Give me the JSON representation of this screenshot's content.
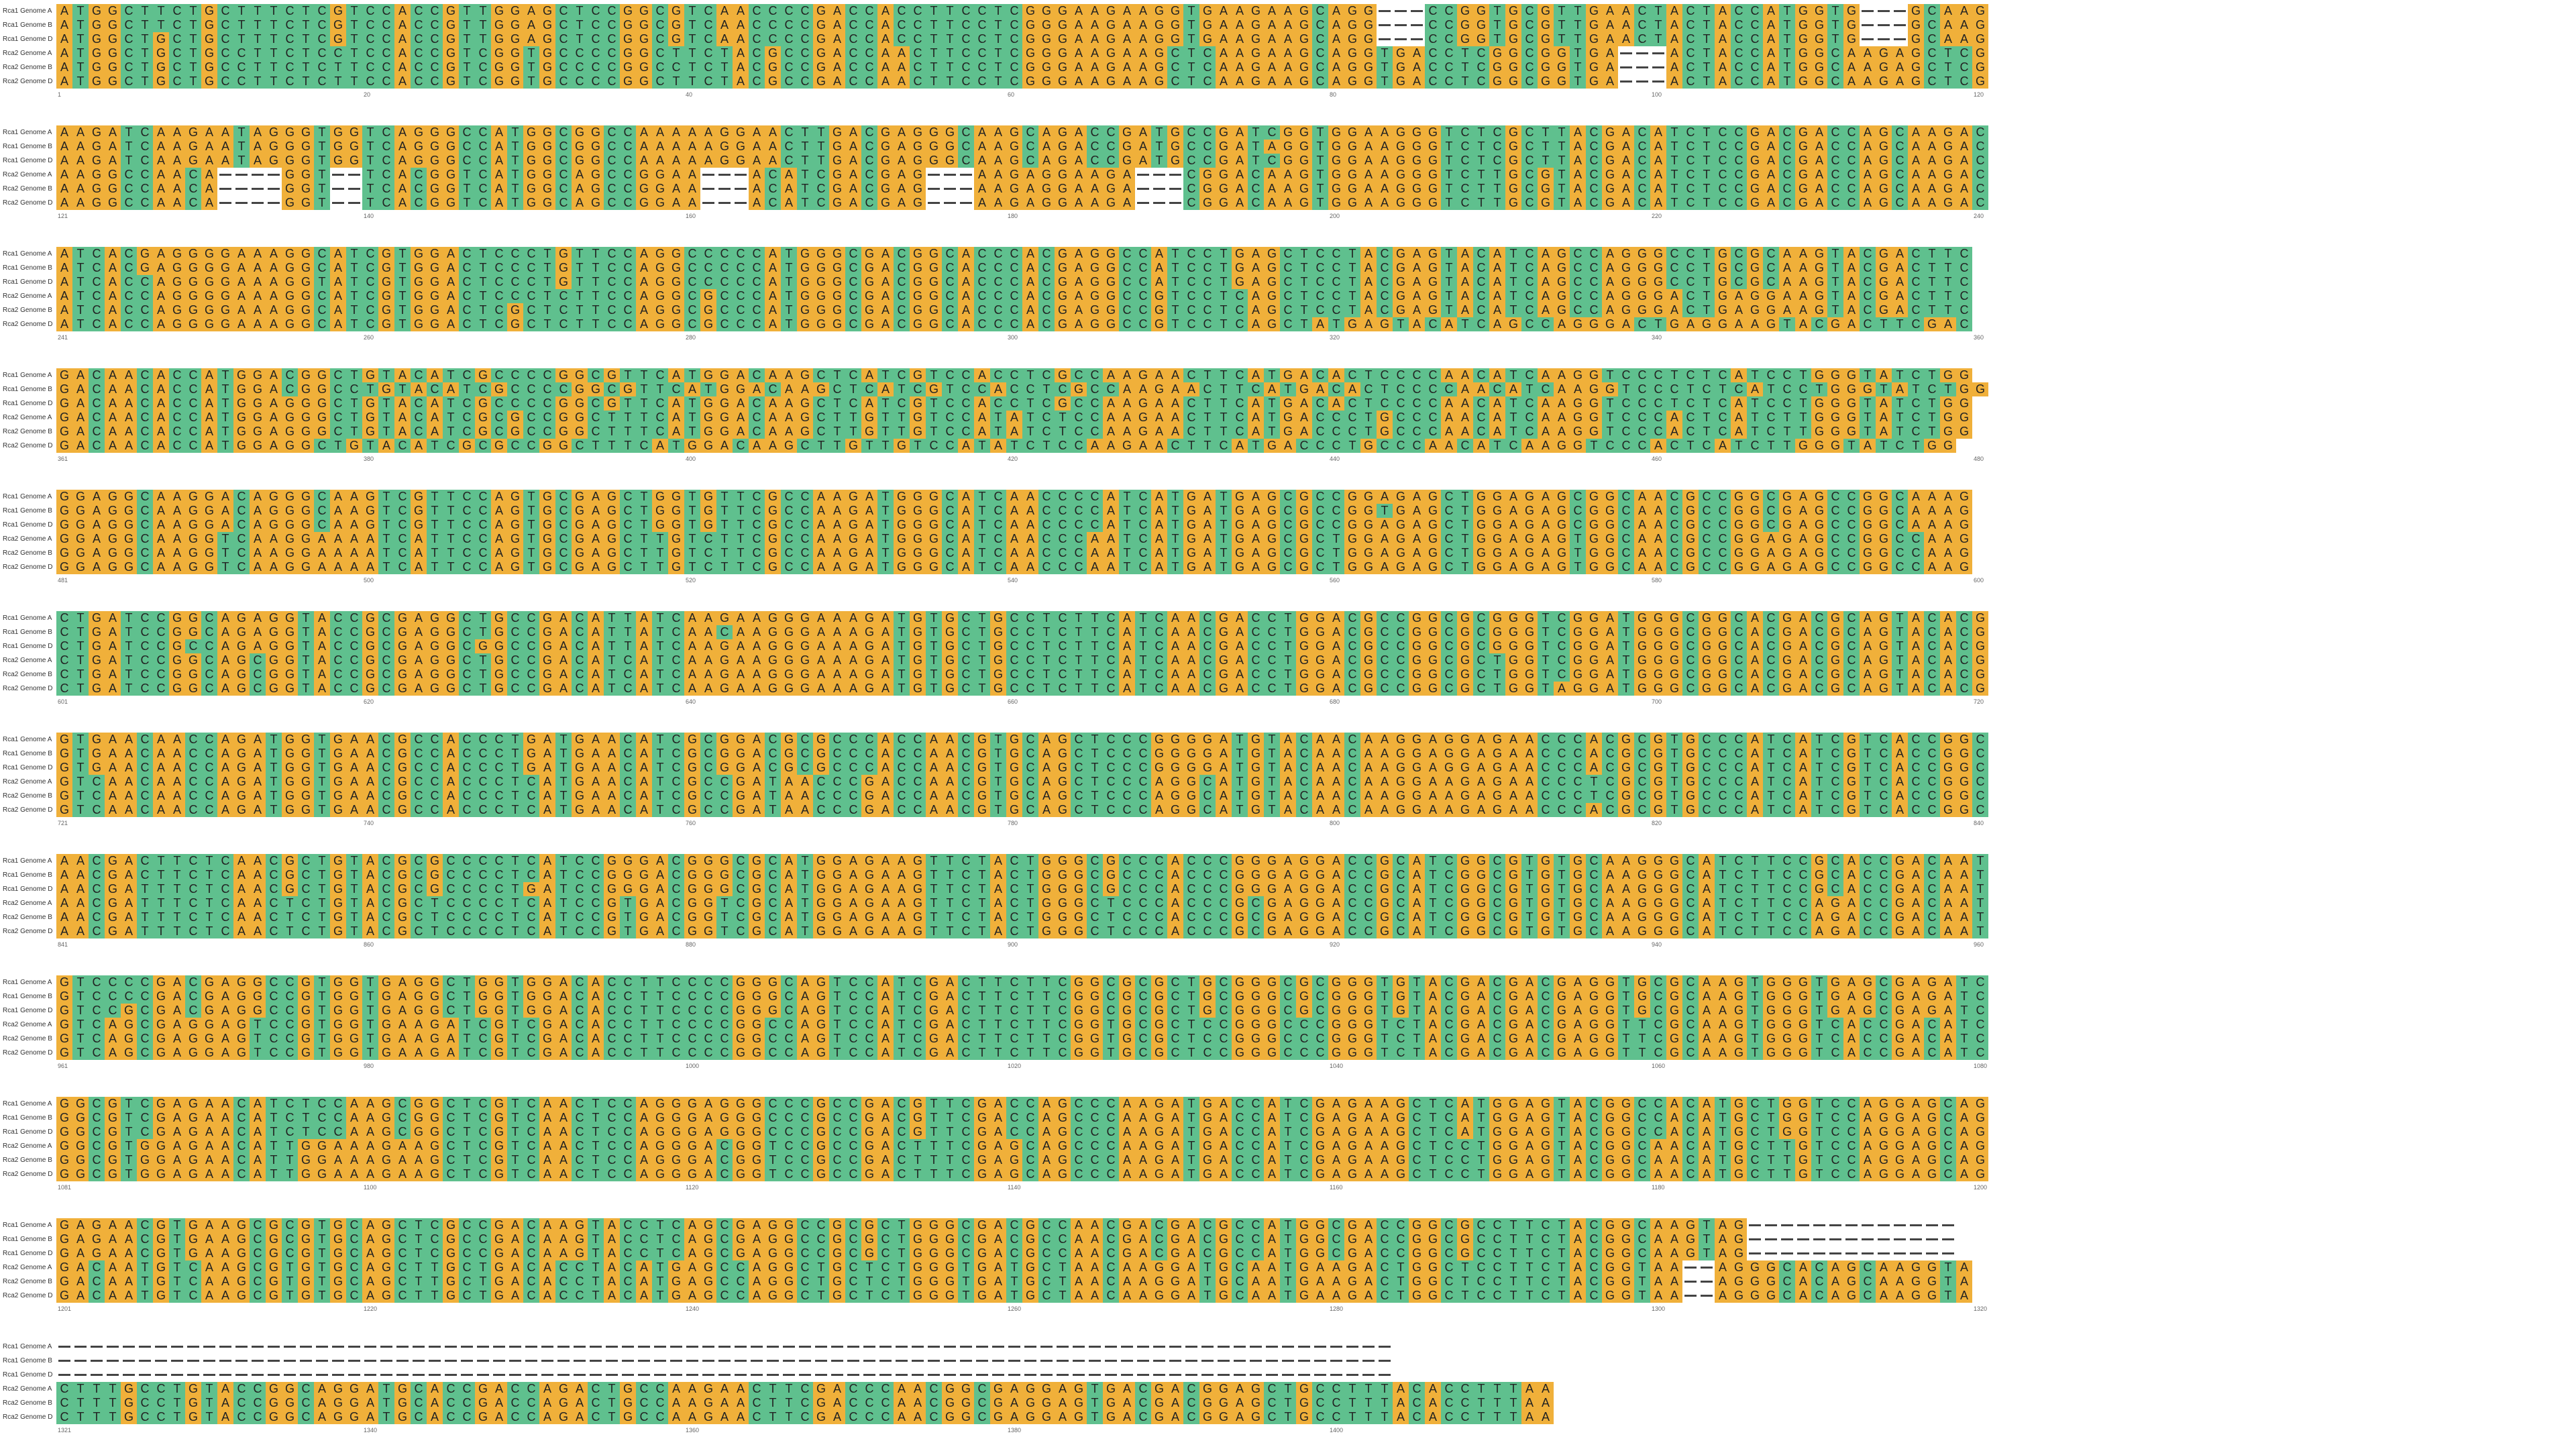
{
  "viewer": {
    "sequences": [
      "Rca1 Genome A",
      "Rca1 Genome B",
      "Rca1 Genome D",
      "Rca2 Genome A",
      "Rca2 Genome B",
      "Rca2 Genome D"
    ],
    "colors": {
      "A": "#f0b03a",
      "C": "#5fc08e",
      "G": "#f0b03a",
      "T": "#5fc08e",
      "-": "#ffffff",
      "text": "#222222",
      "gap_line": "#444444"
    },
    "blocks": [
      {
        "start": 1,
        "ticks": [
          "1",
          "20",
          "40",
          "60",
          "80",
          "100",
          "120"
        ],
        "rows": [
          "ATGGCTTCTGCTTTCTCGTCCACCGTTGGAGCTCCGGCGTCAACCCCGACCACCTTCCTCGGGAAGAAGGTGAAGAAGCAGG---CCGGTGCGTTGAACTACTACCATGGTG---GCAAG",
          "ATGGCTTCTGCTTTCTCGTCCACCGTTGGAGCTCCGGCGTCAACCCCGACCACCTTCCTCGGGAAGAAGGTGAAGAAGCAGG---CCGGTGCGTTGAACTACTACCATGGTG---GCAAG",
          "ATGGCTGCTGCTTTCTCGTCCACCGTTGGAGCTCCGGCGTCAACCCCGACCACCTTCCTCGGGAAGAAGGTGAAGAAGCAGG---CCGGTGCGTTGAACTACTACCATGGTG---GCAAG",
          "ATGGCTGCTGCCTTCTCCTCCACCGTCGGTGCCCCGGCTTCTACGCCGACCAACTTCCTCGGGAAGAAGCTCAAGAAGCAGGTGACCTCGGCGGTGA---ACTACCATGGCAAGAGCTCG",
          "ATGGCTGCTGCCTTCTCTTCCACCGTCGGTGCCCCGGCCTCTACGCCGACCAACTTCCTCGGGAAGAAGCTCAAGAAGCAGGTGACCTCGGCGGTGA---ACTACCATGGCAAGAGCTCG",
          "ATGGCTGCTGCCTTCTCTTCCACCGTCGGTGCCCCGGCTTCTACGCCGACCAACTTCCTCGGGAAGAAGCTCAAGAAGCAGGTGACCTCGGCGGTGA---ACTACCATGGCAAGAGCTCG"
        ]
      },
      {
        "start": 121,
        "ticks": [
          "121",
          "140",
          "160",
          "180",
          "200",
          "220",
          "240"
        ],
        "rows": [
          "AAGATCAAGAATAGGGTGGTCAGGGCCATGGCGGCCAAAAAGGAACTTGACGAGGGCAAGCAGACCGATGCCGATCGGTGGAAGGGTCTCGCTTACGACATCTCCGACGACCAGCAAGAC",
          "AAGATCAAGAATAGGGTGGTCAGGGCCATGGCGGCCAAAAAGGAACTTGACGAGGGCAAGCAGACCGATGCCGATAGGTGGAAGGGTCTCGCTTACGACATCTCCGACGACCAGCAAGAC",
          "AAGATCAAGAATAGGGTGGTCAGGGCCATGGCGGCCAAAAAGGAACTTGACGAGGGCAAGCAGACCGATGCCGATCGGTGGAAGGGTCTCGCTTACGACATCTCCGACGACCAGCAAGAC",
          "AAGGCCAACA----GGT--TCACGGTCATGGCAGCCGGAA---ACATCGACGAG---AAGAGGAAGA---CGGACAAGTGGAAGGGTCTTGCGTACGACATCTCCGACGACCAGCAAGAC",
          "AAGGCCAACA----GGT--TCACGGTCATGGCAGCCGGAA---ACATCGACGAG---AAGAGGAAGA---CGGACAAGTGGAAGGGTCTTGCGTACGACATCTCCGACGACCAGCAAGAC",
          "AAGGCCAACA----GGT--TCACGGTCATGGCAGCCGGAA---ACATCGACGAG---AAGAGGAAGA---CGGACAAGTGGAAGGGTCTTGCGTACGACATCTCCGACGACCAGCAAGAC"
        ]
      },
      {
        "start": 241,
        "ticks": [
          "241",
          "260",
          "280",
          "300",
          "320",
          "340",
          "360"
        ],
        "rows": [
          "ATCACGAGGGGAAAGGCATCGTGGACTCCCTGTTCCAGGCCCCCATGGGCGACGGCACCCACGAGGCCATCCTGAGCTCCTACGAGTACATCAGCCAGGGCCTGCGCAAGTACGACTTC",
          "ATCACGAGGGGAAAGGCATCGTGGACTCCCTGTTCCAGGCCCCCATGGGCGACGGCACCCACGAGGCCATCCTGAGCTCCTACGAGTACATCAGCCAGGGCCTGCGCAAGTACGACTTC",
          "ATCACCAGGGGAAAGGTATCGTGGACTCCCTGTTCCAGGCCCCCATGGGCGACGGCACCCACGAGGCCATCCTGAGCTCCTACGAGTACATCAGCCAGGGCCTGCGCAAGTACGACTTC",
          "ATCACCAGGGGAAAGGCATCGTGGACTCCCTCTTCCAGGCGCCCATGGGCGACGGCACCCACGAGGCCGTCCTCAGCTCCTACGAGTACATCAGCCAGGGACTGAGGAAGTACGACTTC",
          "ATCACCAGGGGAAAGGCATCGTGGACTCGCTCTTCCAGGCGCCCATGGGCGACGGCACCCACGAGGCCGTCCTCAGCTCCTACGAGTACATCAGCCAGGGACTGAGGAAGTACGACTTC",
          "ATCACCAGGGGAAAGGCATCGTGGACTCGCTCTTCCAGGCGCCCATGGGCGACGGCACCCACGAGGCCGTCCTCAGCTATGAGTACATCAGCCAGGGACTGAGGAAGTACGACTTCGAC"
        ]
      },
      {
        "start": 361,
        "ticks": [
          "361",
          "380",
          "400",
          "420",
          "440",
          "460",
          "480"
        ],
        "rows": [
          "GACAACACCATGGACGGCTGTACATCGCCCCGGCGTTCATGGACAAGCTCATCGTCCACCTCGCCAAGAACTTCATGACACTCCCCAACATCAAGGTCCCTCTCATCCTGGGTATCTGG",
          "GACAACACCATGGACGGCCTGTACATCGCCCCGGCGTTCATGGACAAGCTCATCGTCCACCTCGCCAAGAACTTCATGACACTCCCCAACATCAAGGTCCCTCTCATCCTGGGTATCTGG",
          "GACAACACCATGGAGGGCTGTACATCGCCCCGGCGTTCATGGACAAGCTCATCGTCCACCTCGCCAAGAACTTCATGACACTCCCCAACATCAAGGTCCCTCTCATCCTGGGTATCTGG",
          "GACAACACCATGGAGGGCTGTACATCGCGCCGGCTTTCATGGACAAGCTTGTTGTCCATATCTCCAAGAACTTCATGACCCTGCCCAACATCAAGGTCCCACTCATCTTGGGTATCTGG",
          "GACAACACCATGGAGGGCTGTACATCGCGCCGGCTTTCATGGACAAGCTTGTTGTCCATATCTCCAAGAACTTCATGACCCTGCCCAACATCAAGGTCCCACTCATCTTGGGTATCTGG",
          "GACAACACCATGGAGGCTGTACATCGCGCCGGCTTTCATGGACAAGCTTGTTGTCCATATCTCCAAGAACTTCATGACCCTGCCCAACATCAAGGTCCCACTCATCTTGGGTATCTGG"
        ]
      },
      {
        "start": 481,
        "ticks": [
          "481",
          "500",
          "520",
          "540",
          "560",
          "580",
          "600"
        ],
        "rows": [
          "GGAGGCAAGGACAGGGCAAGTCGTTCCAGTGCGAGCTGGTGTTCGCCAAGATGGGCATCAACCCCATCATGATGAGCGCCGGAGAGCTGGAGAGCGGCAACGCCGGCGAGCCGGCAAAG",
          "GGAGGCAAGGACAGGGCAAGTCGTTCCAGTGCGAGCTGGTGTTCGCCAAGATGGGCATCAACCCCATCATGATGAGCGCCGGTGAGCTGGAGAGCGGCAACGCCGGCGAGCCGGCAAAG",
          "GGAGGCAAGGACAGGGCAAGTCGTTCCAGTGCGAGCTGGTGTTCGCCAAGATGGGCATCAACCCCATCATGATGAGCGCCGGAGAGCTGGAGAGCGGCAACGCCGGCGAGCCGGCAAAG",
          "GGAGGCAAGGTCAAGGAAAATCATTCCAGTGCGAGCTTGTCTTCGCCAAGATGGGCATCAACCCAATCATGATGAGCGCTGGAGAGCTGGAGAGTGGCAACGCCGGAGAGCCGGCCAAG",
          "GGAGGCAAGGTCAAGGAAAATCATTCCAGTGCGAGCTTGTCTTCGCCAAGATGGGCATCAACCCAATCATGATGAGCGCTGGAGAGCTGGAGAGTGGCAACGCCGGAGAGCCGGCCAAG",
          "GGAGGCAAGGTCAAGGAAAATCATTCCAGTGCGAGCTTGTCTTCGCCAAGATGGGCATCAACCCAATCATGATGAGCGCTGGAGAGCTGGAGAGTGGCAACGCCGGAGAGCCGGCCAAG"
        ]
      },
      {
        "start": 601,
        "ticks": [
          "601",
          "620",
          "640",
          "660",
          "680",
          "700",
          "720"
        ],
        "rows": [
          "CTGATCCGGCAGAGGTACCGCGAGGCTGCCGACATTATCAAGAAGGGAAAGATGTGCTGCCTCTTCATCAACGACCTGGACGCCGGCGCGGGTCGGATGGGCGGCACGACGCAGTACACG",
          "CTGATCCGGCAGAGGTACCGCGAGGCTGCCGACATTATCAACAAGGGAAAGATGTGCTGCCTCTTCATCAACGACCTGGACGCCGGCGCGGGTCGGATGGGCGGCACGACGCAGTACACG",
          "CTGATCCGCCAGAGGTACCGCGAGGCGGCCGACATTATCAAGAAGGGAAAGATGTGCTGCCTCTTCATCAACGACCTGGACGCCGGCGCGGGTCGGATGGGCGGCACGACGCAGTACACG",
          "CTGATCCGGCAGCGGTACCGCGAGGCTGCCGACATCATCAAGAAGGGAAAGATGTGCTGCCTCTTCATCAACGACCTGGACGCCGGCGCTGGTCGGATGGGCGGCACGACGCAGTACACG",
          "CTGATCCGGCAGCGGTACCGCGAGGCTGCCGACATCATCAAGAAGGGAAAGATGTGCTGCCTCTTCATCAACGACCTGGACGCCGGCGCTGGTCGGATGGGCGGCACGACGCAGTACACG",
          "CTGATCCGGCAGCGGTACCGCGAGGCTGCCGACATCATCAAGAAGGGAAAGATGTGCTGCCTCTTCATCAACGACCTGGACGCCGGCGCTGGTAGGATGGGCGGCACGACGCAGTACACG"
        ]
      },
      {
        "start": 721,
        "ticks": [
          "721",
          "740",
          "760",
          "780",
          "800",
          "820",
          "840"
        ],
        "rows": [
          "GTGAACAACCAGATGGTGAACGCCACCCTGATGAACATCGCGGACGCGCCCACCAACGTGCAGCTCCCGGGGATGTACAACAAGGAGGAGAACCCACGCGTGCCCATCATCGTCACCGGC",
          "GTGAACAACCAGATGGTGAACGCCACCCTGATGAACATCGCGGACGCGCCCACCAACGTGCAGCTCCCGGGGATGTACAACAAGGAGGAGAACCCACGCGTGCCCATCATCGTCACCGGC",
          "GTGAACAACCAGATGGTGAACGCCACCCTGATGAACATCGCGGACGCGCCCACCAACGTGCAGCTCCCGGGGATGTACAACAAGGAGGAGAACCCACGCGTGCCCATCATCGTCACCGGC",
          "GTCAACAACCAGATGGTGAACGCCACCCTCATGAACATCGCCGATAACCCGACCAACGTGCAGCTCCCAGGCATGTACAACAAGGAAGAGAACCCTCGCGTGCCCATCATCGTCACCGGC",
          "GTCAACAACCAGATGGTGAACGCCACCCTCATGAACATCGCCGATAACCCGACCAACGTGCAGCTCCCAGGCATGTACAACAAGGAAGAGAACCCTCGCGTGCCCATCATCGTCACCGGC",
          "GTCAACAACCAGATGGTGAACGCCACCCTCATGAACATCGCCGATAACCCGACCAACGTGCAGCTCCCAGGCATGTACAACAAGGAAGAGAACCCACGCGTGCCCATCATCGTCACCGGC"
        ]
      },
      {
        "start": 841,
        "ticks": [
          "841",
          "860",
          "880",
          "900",
          "920",
          "940",
          "960"
        ],
        "rows": [
          "AACGACTTCTCAACGCTGTACGCGCCCCTCATCCGGGACGGGCGCATGGAGAAGTTCTACTGGGCGCCCACCCGGGAGGACCGCATCGGCGTGTGCAAGGGCATCTTCCGCACCGACAAT",
          "AACGACTTCTCAACGCTGTACGCGCCCCTCATCCGGGACGGGCGCATGGAGAAGTTCTACTGGGCGCCCACCCGGGAGGACCGCATCGGCGTGTGCAAGGGCATCTTCCGCACCGACAAT",
          "AACGATTTCTCAACGCTGTACGCGCCCCTGATCCGGGACGGGCGCATGGAGAAGTTCTACTGGGCGCCCACCCGGGAGGACCGCATCGGCGTGTGCAAGGGCATCTTCCGCACCGACAAT",
          "AACGATTTCTCAACTCTGTACGCTCCCCTCATCCGTGACGGTCGCATGGAGAAGTTCTACTGGGCTCCCACCCGCGAGGACCGCATCGGCGTGTGCAAGGGCATCTTCCAGACCGACAAT",
          "AACGATTTCTCAACTCTGTACGCTCCCCTCATCCGTGACGGTCGCATGGAGAAGTTCTACTGGGCTCCCACCCGCGAGGACCGCATCGGCGTGTGCAAGGGCATCTTCCAGACCGACAAT",
          "AACGATTTCTCAACTCTGTACGCTCCCCTCATCCGTGACGGTCGCATGGAGAAGTTCTACTGGGCTCCCACCCGCGAGGACCGCATCGGCGTGTGCAAGGGCATCTTCCAGACCGACAAT"
        ]
      },
      {
        "start": 961,
        "ticks": [
          "961",
          "980",
          "1000",
          "1020",
          "1040",
          "1060",
          "1080"
        ],
        "rows": [
          "GTCCCCGACGAGGCCGTGGTGAGGCTGGTGGACACCTTCCCCGGGCAGTCCATCGACTTCTTCGGCGCGCTGCGGGCGCGGGTGTACGACGACGAGGTGCGCAAGTGGGTGAGCGAGATC",
          "GTCCCCGACGAGGCCGTGGTGAGGCTGGTGGACACCTTCCCCGGGCAGTCCATCGACTTCTTCGGCGCGCTGCGGGCGCGGGTGTACGACGACGAGGTGCGCAAGTGGGTGAGCGAGATC",
          "GTCCGCGACGAGGCCGTGGTGAGGCTGGTGGACACCTTCCCCGGGCAGTCCATCGACTTCTTCGGCGCGCTGCGGGCGCGGGTGTACGACGACGAGGTGCGCAAGTGGGTGAGCGAGATC",
          "GTCAGCGAGGAGTCCGTGGTGAAGATCGTCGACACCTTCCCCGGCCAGTCCATCGACTTCTTCGGTGCGCTCCGGGCCCGGGTCTACGACGACGAGGTTCGCAAGTGGGTCACCGACATC",
          "GTCAGCGAGGAGTCCGTGGTGAAGATCGTCGACACCTTCCCCGGCCAGTCCATCGACTTCTTCGGTGCGCTCCGGGCCCGGGTCTACGACGACGAGGTTCGCAAGTGGGTCACCGACATC",
          "GTCAGCGAGGAGTCCGTGGTGAAGATCGTCGACACCTTCCCCGGCCAGTCCATCGACTTCTTCGGTGCGCTCCGGGCCCGGGTCTACGACGACGAGGTTCGCAAGTGGGTCACCGACATC"
        ]
      },
      {
        "start": 1081,
        "ticks": [
          "1081",
          "1100",
          "1120",
          "1140",
          "1160",
          "1180",
          "1200"
        ],
        "rows": [
          "GGCGTCGAGAACATCTCCAAGCGGCTCGTCAACTCCAGGGAGGGCCCGCCGACGTTCGACCAGCCCAAGATGACCATCGAGAAGCTCATGGAGTACGGCCACATGCTGGTCCAGGAGCAG",
          "GGCGTCGAGAACATCTCCAAGCGGCTCGTCAACTCCAGGGAGGGCCCGCCGACGTTCGACCAGCCCAAGATGACCATCGAGAAGCTCATGGAGTACGGCCACATGCTGGTCCAGGAGCAG",
          "GGCGTCGAGAACATCTCCAAGCGGCTCGTCAACTCCAGGGAGGGCCCGCCGACGTTCGACCAGCCCAAGATGACCATCGAGAAGCTCATGGAGTACGGCCACATGCTGGTCCAGGAGCAG",
          "GGCGTGGAGAACATTGGAAAGAAGCTCGTCAACTCCAGGGACGGTCCGCCGACTTTCGAGCAGCCCAAGATGACCATCGAGAAGCTCCTGGAGTACGGCAACATGCTTGTCCAGGAGCAG",
          "GGCGTGGAGAACATTGGAAAGAAGCTCGTCAACTCCAGGGACGGTCCGCCGACTTTCGAGCAGCCCAAGATGACCATCGAGAAGCTCCTGGAGTACGGCAACATGCTTGTCCAGGAGCAG",
          "GGCGTGGAGAACATTGGAAAGAAGCTCGTCAACTCCAGGGACGGTCCGCCGACTTTCGAGCAGCCCAAGATGACCATCGAGAAGCTCCTGGAGTACGGCAACATGCTTGTCCAGGAGCAG"
        ]
      },
      {
        "start": 1201,
        "ticks": [
          "1201",
          "1220",
          "1240",
          "1260",
          "1280",
          "1300",
          "1320"
        ],
        "rows": [
          "GAGAACGTGAAGCGCGTGCAGCTCGCCGACAAGTACCTCAGCGAGGCCGCGCTGGGCGACGCCAACGACGACGCCATGGCGACCGGCGCCTTCTACGGCAAGTAG-------------",
          "GAGAACGTGAAGCGCGTGCAGCTCGCCGACAAGTACCTCAGCGAGGCCGCGCTGGGCGACGCCAACGACGACGCCATGGCGACCGGCGCCTTCTACGGCAAGTAG-------------",
          "GAGAACGTGAAGCGCGTGCAGCTCGCCGACAAGTACCTCAGCGAGGCCGCGCTGGGCGACGCCAACGACGACGCCATGGCGACCGGCGCCTTCTACGGCAAGTAG-------------",
          "GACAATGTCAAGCGTGTGCAGCTTGCTGACACCTACATGAGCCAGGCTGCTCTGGGTGATGCTAACAAGGATGCAATGAAGACTGGCTCCTTCTACGGTAA--AGGGCACAGCAAGGTA",
          "GACAATGTCAAGCGTGTGCAGCTTGCTGACACCTACATGAGCCAGGCTGCTCTGGGTGATGCTAACAAGGATGCAATGAAGACTGGCTCCTTCTACGGTAA--AGGGCACAGCAAGGTA",
          "GACAATGTCAAGCGTGTGCAGCTTGCTGACACCTACATGAGCCAGGCTGCTCTGGGTGATGCTAACAAGGATGCAATGAAGACTGGCTCCTTCTACGGTAA--AGGGCACAGCAAGGTA"
        ]
      },
      {
        "start": 1321,
        "ticks": [
          "1321",
          "1340",
          "1360",
          "1380",
          "1400"
        ],
        "rows": [
          "-----------------------------------------------------------------------------------",
          "-----------------------------------------------------------------------------------",
          "-----------------------------------------------------------------------------------",
          "CTTTGCCTGTACCGGCAGGATGCACCGACCAGACTGCCAAGAACTTCGACCCAACGGCGAGGAGTGACGACGGAGCTGCCTTTACACCTTTAA",
          "CTTTGCCTGTACCGGCAGGATGCACCGACCAGACTGCCAAGAACTTCGACCCAACGGCGAGGAGTGACGACGGAGCTGCCTTTACACCTTTAA",
          "CTTTGCCTGTACCGGCAGGATGCACCGACCAGACTGCCAAGAACTTCGACCCAACGGCGAGGAGTGACGACGGAGCTGCCTTTACACCTTTAA"
        ]
      }
    ]
  }
}
